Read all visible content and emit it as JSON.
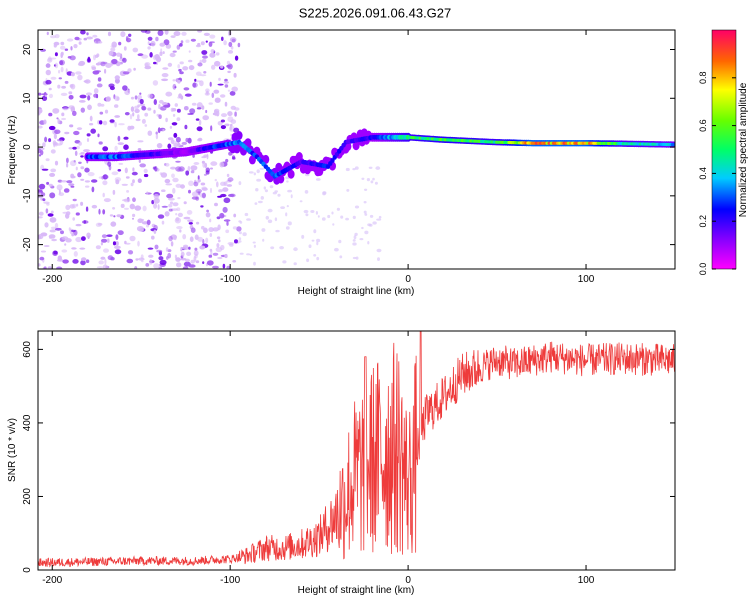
{
  "title": "S225.2026.091.06.43.G27",
  "chart_data": [
    {
      "type": "heatmap",
      "xlabel": "Height of straight line (km)",
      "ylabel": "Frequency (Hz)",
      "xlim": [
        -208,
        150
      ],
      "ylim": [
        -25,
        24
      ],
      "xticks": [
        "-200",
        "-100",
        "0",
        "100"
      ],
      "yticks": [
        "20",
        "10",
        "0",
        "-10",
        "-20"
      ],
      "xtick_values": [
        -200,
        -100,
        0,
        100
      ],
      "ytick_values": [
        20,
        10,
        0,
        -10,
        -20
      ],
      "colorbar": {
        "label": "Normalized spectral amplitude",
        "range": [
          0,
          1
        ],
        "ticks": [
          "0.0",
          "0.2",
          "0.4",
          "0.6",
          "0.8"
        ],
        "tick_values": [
          0.0,
          0.2,
          0.4,
          0.6,
          0.8
        ],
        "colormap": "rainbow"
      },
      "features": {
        "noise_region": [
          -208,
          -95
        ],
        "track": [
          {
            "x": -180,
            "y": -2,
            "amp": 0.3
          },
          {
            "x": -165,
            "y": -2,
            "amp": 0.35
          },
          {
            "x": -125,
            "y": -1,
            "amp": 0.1
          },
          {
            "x": -110,
            "y": 0,
            "amp": 0.3
          },
          {
            "x": -95,
            "y": 1,
            "amp": 0.35
          },
          {
            "x": -85,
            "y": -2,
            "amp": 0.3
          },
          {
            "x": -75,
            "y": -6,
            "amp": 0.35
          },
          {
            "x": -60,
            "y": -3,
            "amp": 0.2
          },
          {
            "x": -45,
            "y": -4,
            "amp": 0.3
          },
          {
            "x": -35,
            "y": 1,
            "amp": 0.2
          },
          {
            "x": -20,
            "y": 2,
            "amp": 0.25
          },
          {
            "x": 0,
            "y": 2,
            "amp": 0.55
          },
          {
            "x": 20,
            "y": 1.5,
            "amp": 0.6
          },
          {
            "x": 50,
            "y": 1,
            "amp": 0.55
          },
          {
            "x": 70,
            "y": 0.8,
            "amp": 0.9
          },
          {
            "x": 100,
            "y": 0.8,
            "amp": 0.9
          },
          {
            "x": 120,
            "y": 0.7,
            "amp": 0.5
          },
          {
            "x": 150,
            "y": 0.5,
            "amp": 0.4
          }
        ]
      }
    },
    {
      "type": "line",
      "xlabel": "Height of straight line (km)",
      "ylabel": "SNR (10 * v/v)",
      "xlim": [
        -208,
        150
      ],
      "ylim": [
        0,
        650
      ],
      "xticks": [
        "-200",
        "-100",
        "0",
        "100"
      ],
      "yticks": [
        "0",
        "200",
        "400",
        "600"
      ],
      "xtick_values": [
        -200,
        -100,
        0,
        100
      ],
      "ytick_values": [
        0,
        200,
        400,
        600
      ],
      "series": [
        {
          "name": "SNR",
          "color": "#ee3b3b",
          "x": [
            -208,
            -180,
            -150,
            -120,
            -100,
            -90,
            -80,
            -70,
            -60,
            -50,
            -40,
            -30,
            -20,
            -10,
            -5,
            0,
            10,
            20,
            30,
            40,
            50,
            60,
            80,
            100,
            120,
            150
          ],
          "y": [
            20,
            22,
            25,
            25,
            30,
            40,
            60,
            60,
            70,
            90,
            150,
            250,
            300,
            330,
            330,
            230,
            420,
            470,
            530,
            550,
            570,
            560,
            580,
            570,
            575,
            570
          ]
        }
      ]
    }
  ]
}
